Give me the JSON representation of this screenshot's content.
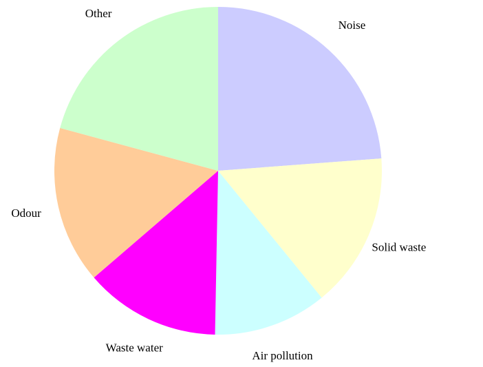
{
  "chart_data": {
    "type": "pie",
    "categories": [
      "Noise",
      "Solid waste",
      "Air pollution",
      "Waste water",
      "Odour",
      "Other"
    ],
    "values": [
      23.8,
      15.3,
      11.2,
      13.4,
      15.5,
      20.8
    ],
    "colors": [
      "#ccccff",
      "#ffffcc",
      "#ccffff",
      "#ff00ff",
      "#ffcc99",
      "#ccffcc"
    ],
    "start_angle": 0,
    "direction": "clockwise"
  }
}
